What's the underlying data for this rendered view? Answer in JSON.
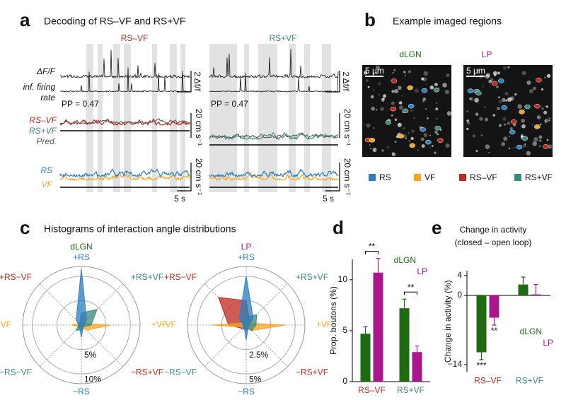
{
  "panel_labels": [
    "a",
    "b",
    "c",
    "d",
    "e"
  ],
  "panel_a": {
    "title": "Decoding  of RS–VF and RS+VF",
    "column_titles": [
      "RS–VF",
      "RS+VF"
    ],
    "dff_label": "ΔF/F",
    "rate_label": [
      "inf. firing",
      "rate"
    ],
    "dff_scales": [
      "2 Δf/f",
      "2 Δf/f"
    ],
    "pp": [
      "PP = 0.47",
      "PP = 0.47"
    ],
    "pred_labels": [
      "RS–VF",
      "RS+VF",
      "Pred."
    ],
    "speed_scales": [
      "20 cm s⁻¹",
      "20 cm s⁻¹",
      "20 cm s⁻¹",
      "20 cm s⁻¹"
    ],
    "speed_labels": [
      "RS",
      "VF"
    ],
    "time_scales": [
      "5 s",
      "5 s"
    ]
  },
  "panel_b": {
    "title": "Example imaged regions",
    "regions": [
      "dLGN",
      "LP"
    ],
    "region_colors": [
      "#1e6b12",
      "#a8188c"
    ],
    "scale_bars": [
      "5 µm",
      "5 µm"
    ],
    "legend": [
      "RS",
      "VF",
      "RS–VF",
      "RS+VF"
    ],
    "legend_colors": [
      "#2a7fc0",
      "#f5a623",
      "#c0281e",
      "#3a8a80"
    ]
  },
  "panel_c": {
    "title": "Histograms of interaction angle distributions"
  },
  "chart_data": [
    {
      "type": "polar",
      "title": "dLGN",
      "title_color": "#1e6b12",
      "categories": [
        "+RS",
        "+RS+VF",
        "+VF",
        "−RS+VF",
        "−RS",
        "−RS−VF",
        "−VF",
        "+RS−VF"
      ],
      "category_colors": [
        "#2a7fc0",
        "#3a8a80",
        "#f5a623",
        "#c0281e",
        "#2a7fc0",
        "#3a8a80",
        "#f5a623",
        "#c0281e"
      ],
      "series": [
        {
          "color": "#f5a623",
          "values": [
            0.5,
            0.5,
            6,
            1.5,
            0.5,
            0.5,
            2,
            0.5
          ]
        },
        {
          "color": "#3a8a80",
          "values": [
            2.5,
            4.5,
            2,
            0.5,
            1,
            1.5,
            0.5,
            0.5
          ]
        },
        {
          "color": "#2a7fc0",
          "values": [
            11.5,
            1.5,
            0.5,
            0.5,
            2.5,
            0.5,
            0.5,
            1.5
          ]
        }
      ],
      "rlim": [
        0,
        12
      ],
      "rticks": [
        {
          "value": 5,
          "label": "5%"
        },
        {
          "value": 10,
          "label": "10%"
        }
      ]
    },
    {
      "type": "polar",
      "title": "LP",
      "title_color": "#a8188c",
      "categories": [
        "+RS",
        "+RS+VF",
        "+VF",
        "−RS+VF",
        "−RS",
        "−RS−VF",
        "−VF",
        "+RS−VF"
      ],
      "category_colors": [
        "#2a7fc0",
        "#3a8a80",
        "#f5a623",
        "#c0281e",
        "#2a7fc0",
        "#3a8a80",
        "#f5a623",
        "#c0281e"
      ],
      "series": [
        {
          "color": "#c0281e",
          "values": [
            2.5,
            0.5,
            0.3,
            0.3,
            0.5,
            0.5,
            1.8,
            4
          ]
        },
        {
          "color": "#f5a623",
          "values": [
            0.3,
            0.3,
            4,
            0.8,
            0.3,
            0.3,
            3.5,
            0.3
          ]
        },
        {
          "color": "#3a8a80",
          "values": [
            0.8,
            1.5,
            1,
            0.8,
            0.3,
            0.5,
            0.3,
            0.3
          ]
        },
        {
          "color": "#2a7fc0",
          "values": [
            5,
            1,
            0.3,
            0.3,
            1.5,
            0.3,
            0.3,
            1
          ]
        }
      ],
      "rlim": [
        0,
        6
      ],
      "rticks": [
        {
          "value": 2.5,
          "label": "2.5%"
        },
        {
          "value": 5,
          "label": "5%"
        }
      ]
    },
    {
      "type": "bar",
      "ylabel": "Prop. boutons (%)",
      "categories": [
        "RS–VF",
        "RS+VF"
      ],
      "category_colors": [
        "#c0281e",
        "#3a8a80"
      ],
      "series": [
        {
          "name": "dLGN",
          "color": "#1e6b12",
          "values": [
            4.7,
            7.2
          ],
          "errors": [
            0.7,
            0.9
          ]
        },
        {
          "name": "LP",
          "color": "#a8188c",
          "values": [
            10.7,
            2.9
          ],
          "errors": [
            1.4,
            0.6
          ]
        }
      ],
      "ylim": [
        0,
        12
      ],
      "yticks": [
        0,
        5,
        10
      ],
      "annotations": [
        "**",
        "**"
      ]
    },
    {
      "type": "bar",
      "title": [
        "Change in activity",
        "(closed – open loop)"
      ],
      "ylabel": "Change in activity (%)",
      "categories": [
        "RS–VF",
        "RS+VF"
      ],
      "category_colors": [
        "#c0281e",
        "#3a8a80"
      ],
      "series": [
        {
          "name": "dLGN",
          "color": "#1e6b12",
          "values": [
            -11.5,
            2.2
          ],
          "errors": [
            1.5,
            1.5
          ]
        },
        {
          "name": "LP",
          "color": "#a8188c",
          "values": [
            -4.5,
            0.2
          ],
          "errors": [
            1.5,
            2
          ]
        }
      ],
      "ylim": [
        -15.5,
        5
      ],
      "yticks": [
        {
          "value": -14,
          "label": "−14"
        },
        0,
        4
      ],
      "annotations": [
        "***",
        "**"
      ]
    }
  ]
}
